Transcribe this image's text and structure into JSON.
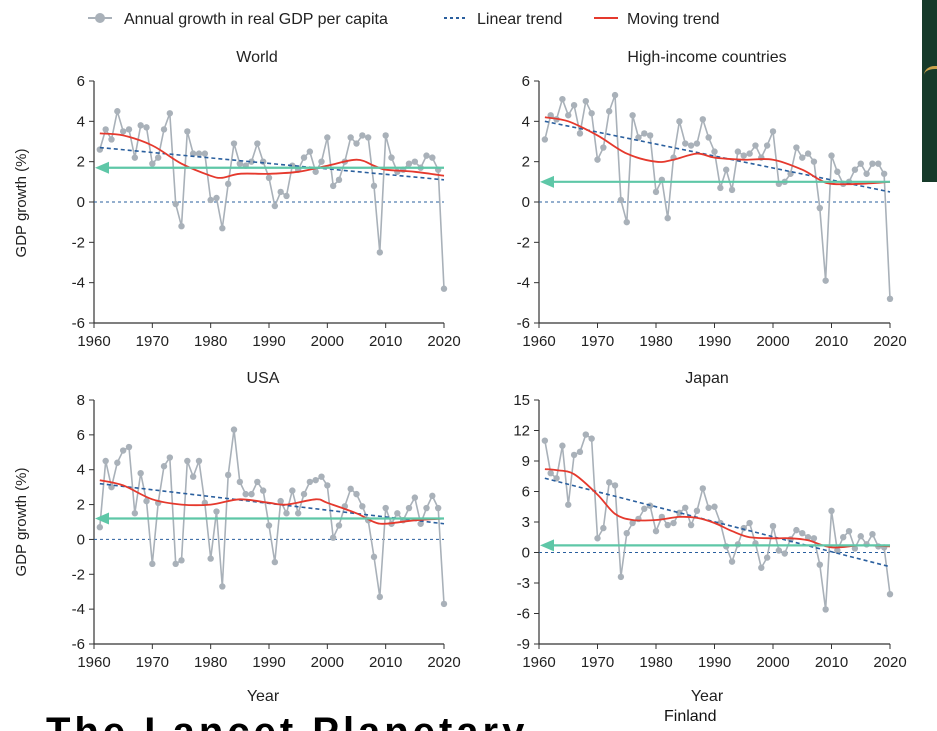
{
  "legend": {
    "annual": "Annual growth in real GDP per capita",
    "linear": "Linear trend",
    "moving": "Moving trend"
  },
  "colors": {
    "annual": "#a9b1b9",
    "linear": "#2a5f9e",
    "moving": "#e5392d",
    "reference_arrow": "#5ec7a7",
    "zero_line": "#2a5f9e",
    "side_strip": "#163a2a",
    "side_strip_accent": "#c9a24c"
  },
  "xlabel": "Year",
  "ylabel": "GDP growth (%)",
  "bottom_caption": "Finland",
  "cut_text": "The Lancet Planetary",
  "chart_data": [
    {
      "type": "line",
      "title": "World",
      "ylabel": "GDP growth (%)",
      "xlabel": "",
      "xlim": [
        1960,
        2020
      ],
      "ylim": [
        -6,
        6
      ],
      "xticks": [
        1960,
        1970,
        1980,
        1990,
        2000,
        2010,
        2020
      ],
      "yticks": [
        -6,
        -4,
        -2,
        0,
        2,
        4,
        6
      ],
      "arrow_level": 1.7,
      "linear_trend": [
        [
          1961,
          2.7
        ],
        [
          2020,
          1.1
        ]
      ],
      "series": [
        {
          "name": "Annual growth in real GDP per capita",
          "x": [
            1961,
            1962,
            1963,
            1964,
            1965,
            1966,
            1967,
            1968,
            1969,
            1970,
            1971,
            1972,
            1973,
            1974,
            1975,
            1976,
            1977,
            1978,
            1979,
            1980,
            1981,
            1982,
            1983,
            1984,
            1985,
            1986,
            1987,
            1988,
            1989,
            1990,
            1991,
            1992,
            1993,
            1994,
            1995,
            1996,
            1997,
            1998,
            1999,
            2000,
            2001,
            2002,
            2003,
            2004,
            2005,
            2006,
            2007,
            2008,
            2009,
            2010,
            2011,
            2012,
            2013,
            2014,
            2015,
            2016,
            2017,
            2018,
            2019,
            2020
          ],
          "values": [
            2.6,
            3.6,
            3.1,
            4.5,
            3.5,
            3.6,
            2.2,
            3.8,
            3.7,
            1.9,
            2.2,
            3.6,
            4.4,
            -0.1,
            -1.2,
            3.5,
            2.4,
            2.4,
            2.4,
            0.1,
            0.2,
            -1.3,
            0.9,
            2.9,
            1.9,
            1.8,
            2.0,
            2.9,
            2.0,
            1.2,
            -0.2,
            0.5,
            0.3,
            1.8,
            1.6,
            2.2,
            2.5,
            1.5,
            2.0,
            3.2,
            0.8,
            1.1,
            2.0,
            3.2,
            2.9,
            3.3,
            3.2,
            0.8,
            -2.5,
            3.3,
            2.2,
            1.5,
            1.6,
            1.9,
            2.0,
            1.7,
            2.3,
            2.2,
            1.6,
            -4.3
          ]
        },
        {
          "name": "Moving trend",
          "x": [
            1961,
            1965,
            1970,
            1975,
            1980,
            1982,
            1985,
            1990,
            1995,
            2000,
            2005,
            2008,
            2010,
            2015,
            2020
          ],
          "values": [
            3.4,
            3.3,
            2.8,
            1.9,
            1.3,
            1.2,
            1.4,
            1.4,
            1.5,
            1.8,
            2.1,
            1.8,
            1.6,
            1.5,
            1.3
          ]
        }
      ]
    },
    {
      "type": "line",
      "title": "High-income countries",
      "ylabel": "",
      "xlabel": "",
      "xlim": [
        1960,
        2020
      ],
      "ylim": [
        -6,
        6
      ],
      "xticks": [
        1960,
        1970,
        1980,
        1990,
        2000,
        2010,
        2020
      ],
      "yticks": [
        -6,
        -4,
        -2,
        0,
        2,
        4,
        6
      ],
      "arrow_level": 1.0,
      "linear_trend": [
        [
          1961,
          4.0
        ],
        [
          2020,
          0.5
        ]
      ],
      "series": [
        {
          "name": "Annual growth in real GDP per capita",
          "x": [
            1961,
            1962,
            1963,
            1964,
            1965,
            1966,
            1967,
            1968,
            1969,
            1970,
            1971,
            1972,
            1973,
            1974,
            1975,
            1976,
            1977,
            1978,
            1979,
            1980,
            1981,
            1982,
            1983,
            1984,
            1985,
            1986,
            1987,
            1988,
            1989,
            1990,
            1991,
            1992,
            1993,
            1994,
            1995,
            1996,
            1997,
            1998,
            1999,
            2000,
            2001,
            2002,
            2003,
            2004,
            2005,
            2006,
            2007,
            2008,
            2009,
            2010,
            2011,
            2012,
            2013,
            2014,
            2015,
            2016,
            2017,
            2018,
            2019,
            2020
          ],
          "values": [
            3.1,
            4.3,
            4.1,
            5.1,
            4.3,
            4.8,
            3.4,
            5.0,
            4.4,
            2.1,
            2.7,
            4.5,
            5.3,
            0.1,
            -1.0,
            4.3,
            3.2,
            3.4,
            3.3,
            0.5,
            1.1,
            -0.8,
            2.2,
            4.0,
            2.9,
            2.8,
            2.9,
            4.1,
            3.2,
            2.5,
            0.7,
            1.6,
            0.6,
            2.5,
            2.3,
            2.4,
            2.8,
            2.2,
            2.8,
            3.5,
            0.9,
            1.0,
            1.4,
            2.7,
            2.2,
            2.4,
            2.0,
            -0.3,
            -3.9,
            2.3,
            1.5,
            0.9,
            1.0,
            1.6,
            1.9,
            1.4,
            1.9,
            1.9,
            1.4,
            -4.8
          ]
        },
        {
          "name": "Moving trend",
          "x": [
            1961,
            1965,
            1970,
            1975,
            1980,
            1983,
            1987,
            1990,
            1995,
            2000,
            2005,
            2008,
            2010,
            2015,
            2020
          ],
          "values": [
            4.2,
            4.0,
            3.3,
            2.4,
            2.0,
            2.1,
            2.4,
            2.2,
            2.1,
            2.1,
            1.6,
            1.1,
            0.9,
            0.9,
            1.0
          ]
        }
      ]
    },
    {
      "type": "line",
      "title": "USA",
      "ylabel": "GDP growth (%)",
      "xlabel": "Year",
      "xlim": [
        1960,
        2020
      ],
      "ylim": [
        -6,
        8
      ],
      "xticks": [
        1960,
        1970,
        1980,
        1990,
        2000,
        2010,
        2020
      ],
      "yticks": [
        -6,
        -4,
        -2,
        0,
        2,
        4,
        6,
        8
      ],
      "arrow_level": 1.2,
      "linear_trend": [
        [
          1961,
          3.2
        ],
        [
          2020,
          0.9
        ]
      ],
      "series": [
        {
          "name": "Annual growth in real GDP per capita",
          "x": [
            1961,
            1962,
            1963,
            1964,
            1965,
            1966,
            1967,
            1968,
            1969,
            1970,
            1971,
            1972,
            1973,
            1974,
            1975,
            1976,
            1977,
            1978,
            1979,
            1980,
            1981,
            1982,
            1983,
            1984,
            1985,
            1986,
            1987,
            1988,
            1989,
            1990,
            1991,
            1992,
            1993,
            1994,
            1995,
            1996,
            1997,
            1998,
            1999,
            2000,
            2001,
            2002,
            2003,
            2004,
            2005,
            2006,
            2007,
            2008,
            2009,
            2010,
            2011,
            2012,
            2013,
            2014,
            2015,
            2016,
            2017,
            2018,
            2019,
            2020
          ],
          "values": [
            0.7,
            4.5,
            3.0,
            4.4,
            5.1,
            5.3,
            1.5,
            3.8,
            2.2,
            -1.4,
            2.1,
            4.2,
            4.7,
            -1.4,
            -1.2,
            4.5,
            3.6,
            4.5,
            2.1,
            -1.1,
            1.6,
            -2.7,
            3.7,
            6.3,
            3.3,
            2.6,
            2.6,
            3.3,
            2.8,
            0.8,
            -1.3,
            2.2,
            1.5,
            2.8,
            1.5,
            2.6,
            3.3,
            3.4,
            3.6,
            3.1,
            0.1,
            0.8,
            1.9,
            2.9,
            2.6,
            1.9,
            1.1,
            -1.0,
            -3.3,
            1.8,
            0.9,
            1.5,
            1.1,
            1.8,
            2.4,
            0.9,
            1.8,
            2.5,
            1.8,
            -3.7
          ]
        },
        {
          "name": "Moving trend",
          "x": [
            1961,
            1965,
            1970,
            1975,
            1980,
            1985,
            1990,
            1993,
            1998,
            2000,
            2005,
            2008,
            2010,
            2015,
            2020
          ],
          "values": [
            3.4,
            3.1,
            2.3,
            2.0,
            2.0,
            2.3,
            2.1,
            2.0,
            2.3,
            2.1,
            1.5,
            1.0,
            0.9,
            1.1,
            1.2
          ]
        }
      ]
    },
    {
      "type": "line",
      "title": "Japan",
      "ylabel": "",
      "xlabel": "Year",
      "xlim": [
        1960,
        2020
      ],
      "ylim": [
        -9,
        15
      ],
      "xticks": [
        1960,
        1970,
        1980,
        1990,
        2000,
        2010,
        2020
      ],
      "yticks": [
        -9,
        -6,
        -3,
        0,
        3,
        6,
        9,
        12,
        15
      ],
      "arrow_level": 0.7,
      "linear_trend": [
        [
          1961,
          7.3
        ],
        [
          2020,
          -1.4
        ]
      ],
      "series": [
        {
          "name": "Annual growth in real GDP per capita",
          "x": [
            1961,
            1962,
            1963,
            1964,
            1965,
            1966,
            1967,
            1968,
            1969,
            1970,
            1971,
            1972,
            1973,
            1974,
            1975,
            1976,
            1977,
            1978,
            1979,
            1980,
            1981,
            1982,
            1983,
            1984,
            1985,
            1986,
            1987,
            1988,
            1989,
            1990,
            1991,
            1992,
            1993,
            1994,
            1995,
            1996,
            1997,
            1998,
            1999,
            2000,
            2001,
            2002,
            2003,
            2004,
            2005,
            2006,
            2007,
            2008,
            2009,
            2010,
            2011,
            2012,
            2013,
            2014,
            2015,
            2016,
            2017,
            2018,
            2019,
            2020
          ],
          "values": [
            11.0,
            7.8,
            7.3,
            10.5,
            4.7,
            9.6,
            9.9,
            11.6,
            11.2,
            1.4,
            2.4,
            6.9,
            6.6,
            -2.4,
            1.9,
            2.9,
            3.3,
            4.3,
            4.6,
            2.1,
            3.5,
            2.7,
            2.9,
            3.9,
            4.4,
            2.7,
            4.1,
            6.3,
            4.4,
            4.5,
            2.9,
            0.6,
            -0.9,
            0.8,
            2.4,
            2.9,
            0.9,
            -1.5,
            -0.5,
            2.6,
            0.2,
            -0.1,
            1.3,
            2.2,
            1.9,
            1.5,
            1.4,
            -1.2,
            -5.6,
            4.1,
            0.2,
            1.5,
            2.1,
            0.4,
            1.6,
            0.8,
            1.8,
            0.6,
            0.5,
            -4.1
          ]
        },
        {
          "name": "Moving trend",
          "x": [
            1961,
            1963,
            1966,
            1970,
            1973,
            1976,
            1980,
            1984,
            1987,
            1990,
            1993,
            1996,
            2000,
            2003,
            2006,
            2010,
            2015,
            2020
          ],
          "values": [
            8.2,
            8.1,
            7.7,
            5.7,
            3.8,
            3.2,
            3.2,
            3.5,
            3.4,
            2.9,
            2.1,
            1.5,
            1.4,
            1.4,
            1.2,
            0.5,
            0.7,
            0.6
          ]
        }
      ]
    }
  ]
}
